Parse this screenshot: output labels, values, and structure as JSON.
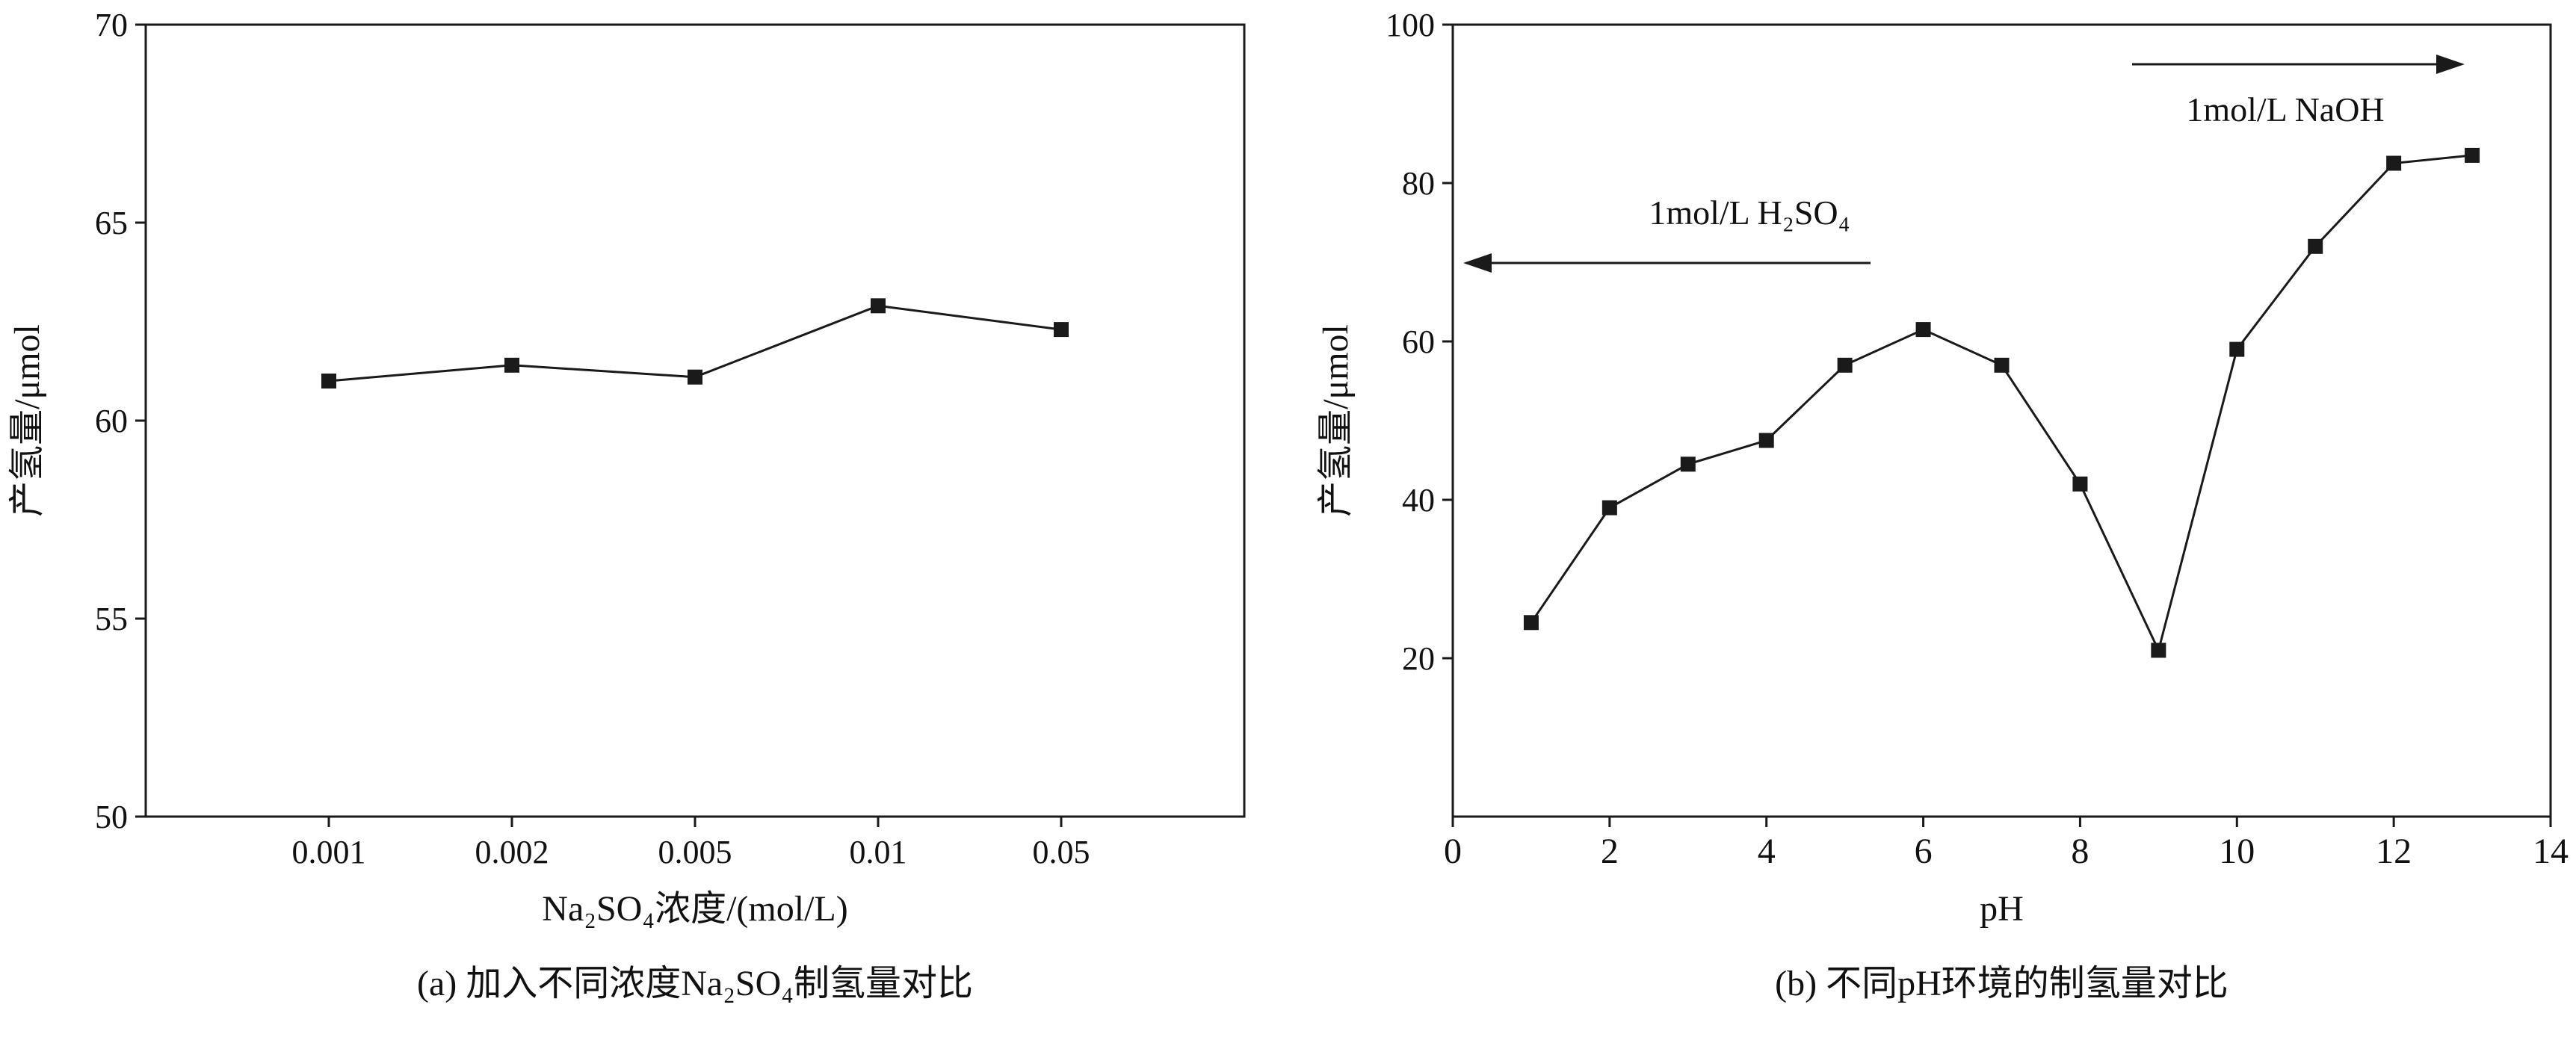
{
  "figure": {
    "background": "#ffffff",
    "ink_color": "#1a1a1a"
  },
  "chart_data": [
    {
      "id": "a",
      "type": "line",
      "title": "",
      "categories": [
        "0.001",
        "0.002",
        "0.005",
        "0.01",
        "0.05"
      ],
      "values": [
        61.0,
        61.4,
        61.1,
        62.9,
        62.3
      ],
      "xlabel": "Na₂SO₄浓度/(mol/L)",
      "ylabel": "产氢量/μmol",
      "caption": "(a) 加入不同浓度Na₂SO₄制氢量对比",
      "ylim": [
        50,
        70
      ],
      "yticks": [
        50,
        55,
        60,
        65,
        70
      ],
      "grid": false,
      "legend": "none",
      "marker": "square",
      "color": "#1a1a1a"
    },
    {
      "id": "b",
      "type": "line",
      "title": "",
      "x": [
        1,
        2,
        3,
        4,
        5,
        6,
        7,
        8,
        9,
        10,
        11,
        12,
        13
      ],
      "values": [
        24.5,
        39,
        44.5,
        47.5,
        57,
        61.5,
        57,
        42,
        21,
        59,
        72,
        82.5,
        83.5
      ],
      "xlabel": "pH",
      "ylabel": "产氢量/μmol",
      "caption": "(b) 不同pH环境的制氢量对比",
      "xlim": [
        0,
        14
      ],
      "xticks": [
        0,
        2,
        4,
        6,
        8,
        10,
        12,
        14
      ],
      "ylim": [
        0,
        100
      ],
      "yticks": [
        20,
        40,
        60,
        80,
        100
      ],
      "grid": false,
      "legend": "none",
      "marker": "square",
      "color": "#1a1a1a",
      "annotations": [
        {
          "text": "1mol/L H₂SO₄",
          "arrow": "left"
        },
        {
          "text": "1mol/L NaOH",
          "arrow": "right"
        }
      ]
    }
  ]
}
